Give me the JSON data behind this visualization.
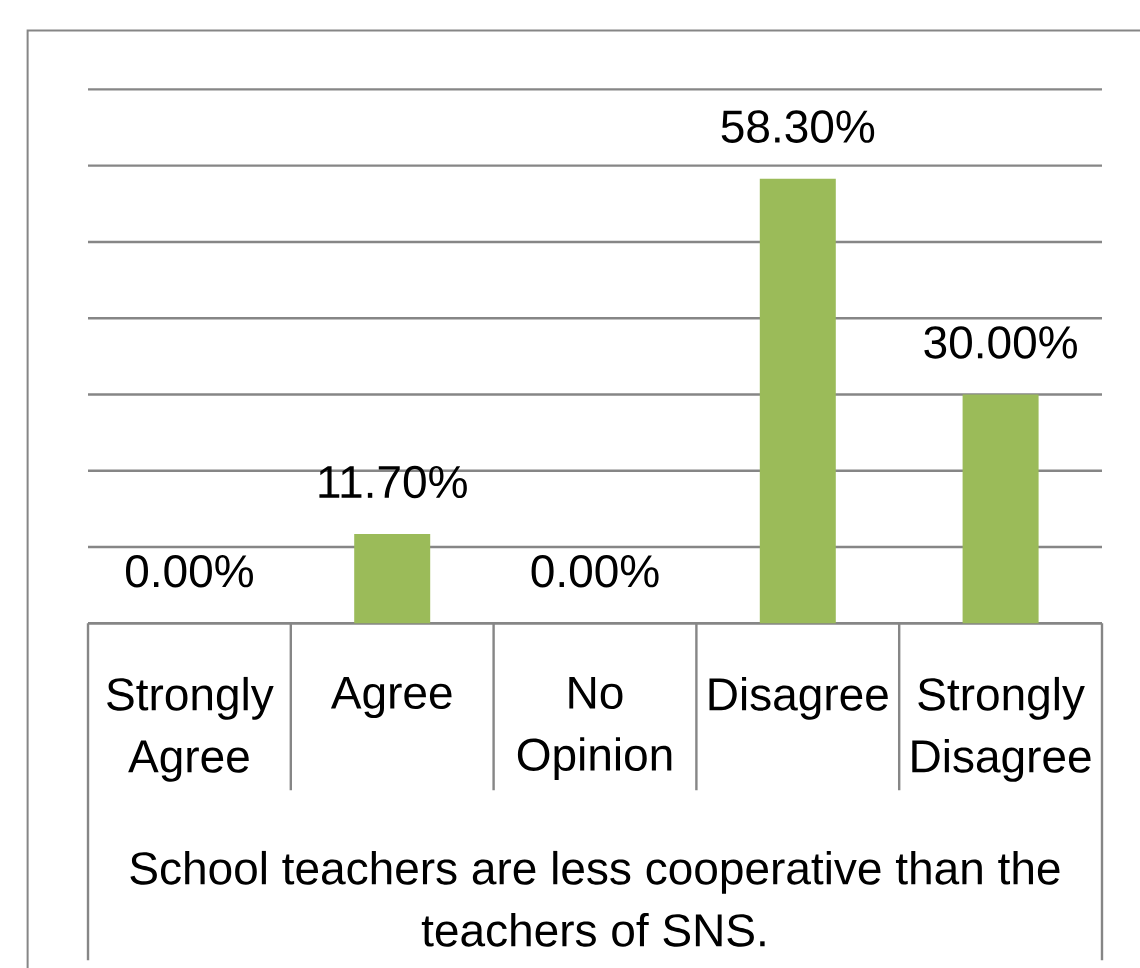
{
  "chart_data": {
    "type": "bar",
    "categories": [
      "Strongly Agree",
      "Agree",
      "No Opinion",
      "Disagree",
      "Strongly Disagree"
    ],
    "values": [
      0,
      11.7,
      0,
      58.3,
      30
    ],
    "value_labels": [
      "0.00%",
      "11.70%",
      "0.00%",
      "58.30%",
      "30.00%"
    ],
    "color": "#9bbb59",
    "xlabel": "School teachers are less cooperative than the teachers of SNS.",
    "ylim": [
      0,
      70
    ],
    "yticks": [
      {
        "value": 0,
        "label": null
      },
      {
        "value": 10,
        "label": null
      },
      {
        "value": 20,
        "label": null
      },
      {
        "value": 30,
        "label": null
      },
      {
        "value": 40,
        "label": null
      },
      {
        "value": 50,
        "label": null
      },
      {
        "value": 60,
        "label": null
      },
      {
        "value": 70,
        "label": null
      }
    ],
    "grid": "y",
    "tick_labels": "x"
  }
}
